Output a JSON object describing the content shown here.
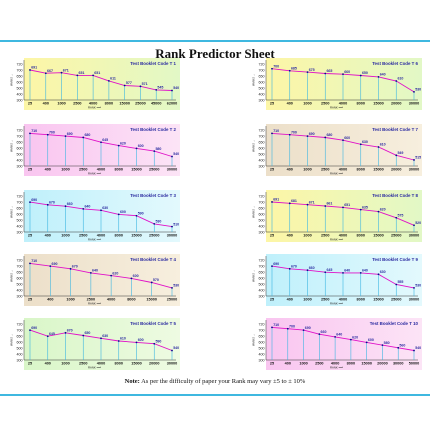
{
  "page": {
    "title": "Rank Predictor Sheet",
    "note_label": "Note:",
    "note_text": " As per the difficulty of paper your Rank may vary ±5 to ± 10%"
  },
  "colors": {
    "rule": "#3fb8e0",
    "line": "#e011c8",
    "drop": "#3db6e2",
    "marker": "#0a0a8a",
    "label": "#2a2aa0"
  },
  "chart_data": [
    {
      "type": "line",
      "title": "Test Booklet Code T 1",
      "bg": [
        "#fdf6a6",
        "#e2f8c6"
      ],
      "ylabel": "MARKS",
      "xlabel": "RANK",
      "y_ticks": [
        "720",
        "700",
        "650",
        "600",
        "500",
        "400",
        "300"
      ],
      "x": [
        "25",
        "400",
        "1000",
        "2500",
        "4000",
        "8000",
        "15000",
        "25000",
        "45000",
        "62000"
      ],
      "values": [
        691,
        667,
        671,
        651,
        651,
        611,
        577,
        571,
        545,
        540
      ],
      "ylim": [
        300,
        720
      ]
    },
    {
      "type": "line",
      "title": "Test Booklet Code T 6",
      "bg": [
        "#fdf6a6",
        "#e2f8c6"
      ],
      "ylabel": "MARKS",
      "xlabel": "RANK",
      "y_ticks": [
        "720",
        "700",
        "650",
        "600",
        "500",
        "400",
        "300"
      ],
      "x": [
        "25",
        "400",
        "1000",
        "2500",
        "4000",
        "8000",
        "15000",
        "20000",
        "30000"
      ],
      "values": [
        700,
        685,
        675,
        665,
        660,
        650,
        640,
        610,
        530
      ],
      "ylim": [
        300,
        720
      ]
    },
    {
      "type": "line",
      "title": "Test Booklet Code T 2",
      "bg": [
        "#f9c5f0",
        "#fce4f6"
      ],
      "ylabel": "MARKS",
      "xlabel": "RANK",
      "y_ticks": [
        "720",
        "700",
        "650",
        "600",
        "500",
        "400",
        "300"
      ],
      "x": [
        "25",
        "400",
        "1000",
        "2500",
        "4000",
        "8000",
        "15000",
        "25000",
        "30000"
      ],
      "values": [
        710,
        700,
        690,
        680,
        645,
        620,
        600,
        580,
        540
      ],
      "ylim": [
        300,
        720
      ]
    },
    {
      "type": "line",
      "title": "Test Booklet Code T 7",
      "bg": [
        "#ecdfc9",
        "#f7efde"
      ],
      "ylabel": "MARKS",
      "xlabel": "RANK",
      "y_ticks": [
        "720",
        "700",
        "650",
        "600",
        "500",
        "400",
        "300"
      ],
      "x": [
        "25",
        "400",
        "1000",
        "2500",
        "4000",
        "8000",
        "15000",
        "20000",
        "30000"
      ],
      "values": [
        710,
        700,
        690,
        680,
        660,
        630,
        610,
        549,
        515
      ],
      "ylim": [
        300,
        720
      ]
    },
    {
      "type": "line",
      "title": "Test Booklet Code T 3",
      "bg": [
        "#bff0fb",
        "#e3f9fd"
      ],
      "ylabel": "MARKS",
      "xlabel": "RANK",
      "y_ticks": [
        "720",
        "700",
        "650",
        "600",
        "500",
        "400",
        "300"
      ],
      "x": [
        "25",
        "400",
        "1000",
        "2500",
        "4000",
        "8000",
        "15000",
        "25000",
        "30000"
      ],
      "values": [
        690,
        670,
        660,
        640,
        630,
        600,
        590,
        530,
        510
      ],
      "ylim": [
        300,
        720
      ]
    },
    {
      "type": "line",
      "title": "Test Booklet Code T 8",
      "bg": [
        "#fdf6a6",
        "#e2f8c6"
      ],
      "ylabel": "MARKS",
      "xlabel": "RANK",
      "y_ticks": [
        "720",
        "700",
        "650",
        "600",
        "500",
        "400",
        "300"
      ],
      "x": [
        "25",
        "400",
        "1000",
        "2500",
        "4000",
        "8000",
        "15000",
        "25000",
        "30000"
      ],
      "values": [
        691,
        681,
        671,
        661,
        651,
        635,
        620,
        575,
        520
      ],
      "ylim": [
        300,
        720
      ]
    },
    {
      "type": "line",
      "title": "Test Booklet Code T 4",
      "bg": [
        "#ecdfc9",
        "#f7efde"
      ],
      "ylabel": "MARKS",
      "xlabel": "RANK",
      "y_ticks": [
        "720",
        "700",
        "650",
        "600",
        "500",
        "400",
        "300"
      ],
      "x": [
        "25",
        "400",
        "1000",
        "2500",
        "4000",
        "8000",
        "15000",
        "25000"
      ],
      "values": [
        710,
        690,
        670,
        640,
        620,
        600,
        570,
        530
      ],
      "ylim": [
        300,
        720
      ]
    },
    {
      "type": "line",
      "title": "Test Booklet Code T 9",
      "bg": [
        "#bff0fb",
        "#e3f9fd"
      ],
      "ylabel": "MARKS",
      "xlabel": "RANK",
      "y_ticks": [
        "720",
        "700",
        "650",
        "600",
        "500",
        "400",
        "300"
      ],
      "x": [
        "25",
        "400",
        "1000",
        "2500",
        "4000",
        "8000",
        "15000",
        "25000",
        "30000"
      ],
      "values": [
        690,
        670,
        660,
        645,
        640,
        640,
        630,
        555,
        530
      ],
      "ylim": [
        300,
        720
      ]
    },
    {
      "type": "line",
      "title": "Test Booklet Code T 5",
      "bg": [
        "#d9f6c8",
        "#eefbe2"
      ],
      "ylabel": "MARKS",
      "xlabel": "RANK",
      "y_ticks": [
        "720",
        "700",
        "650",
        "600",
        "500",
        "400",
        "300"
      ],
      "x": [
        "25",
        "400",
        "1000",
        "2500",
        "4000",
        "8000",
        "15000",
        "20000",
        "30000"
      ],
      "values": [
        690,
        645,
        670,
        650,
        630,
        610,
        600,
        590,
        540
      ],
      "ylim": [
        300,
        720
      ]
    },
    {
      "type": "line",
      "title": "Test Booklet Code T 10",
      "bg": [
        "#f9c5f0",
        "#fce4f6"
      ],
      "ylabel": "MARKS",
      "xlabel": "RANK",
      "y_ticks": [
        "720",
        "700",
        "650",
        "600",
        "500",
        "400",
        "300"
      ],
      "x": [
        "25",
        "400",
        "1000",
        "2500",
        "4000",
        "8000",
        "15000",
        "20000",
        "30000",
        "50000"
      ],
      "values": [
        710,
        700,
        690,
        660,
        640,
        620,
        600,
        580,
        560,
        540
      ],
      "ylim": [
        300,
        720
      ]
    }
  ]
}
